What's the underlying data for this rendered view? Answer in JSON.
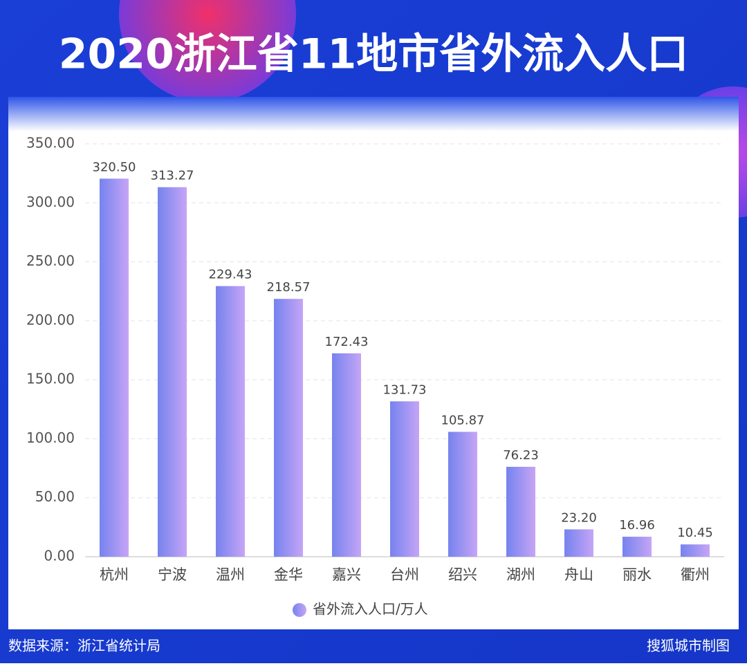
{
  "chart_data": {
    "type": "bar",
    "title": "2020浙江省11地市省外流入人口",
    "categories": [
      "杭州",
      "宁波",
      "温州",
      "金华",
      "嘉兴",
      "台州",
      "绍兴",
      "湖州",
      "舟山",
      "丽水",
      "衢州"
    ],
    "series": [
      {
        "name": "省外流入人口/万人",
        "color": [
          "#7583ee",
          "#c6a5f6"
        ],
        "values": [
          320.5,
          313.27,
          229.43,
          218.57,
          172.43,
          131.73,
          105.87,
          76.23,
          23.2,
          16.96,
          10.45
        ],
        "value_labels": [
          "320.50",
          "313.27",
          "229.43",
          "218.57",
          "172.43",
          "131.73",
          "105.87",
          "76.23",
          "23.20",
          "16.96",
          "10.45"
        ]
      }
    ],
    "ylim": [
      0,
      350
    ],
    "yticks": [
      {
        "value": 0,
        "label": "0.00"
      },
      {
        "value": 50,
        "label": "50.00"
      },
      {
        "value": 100,
        "label": "100.00"
      },
      {
        "value": 150,
        "label": "150.00"
      },
      {
        "value": 200,
        "label": "200.00"
      },
      {
        "value": 250,
        "label": "250.00"
      },
      {
        "value": 300,
        "label": "300.00"
      },
      {
        "value": 350,
        "label": "350.00"
      }
    ],
    "grid": true,
    "source": "数据来源：浙江省统计局",
    "credit": "搜狐城市制图"
  }
}
